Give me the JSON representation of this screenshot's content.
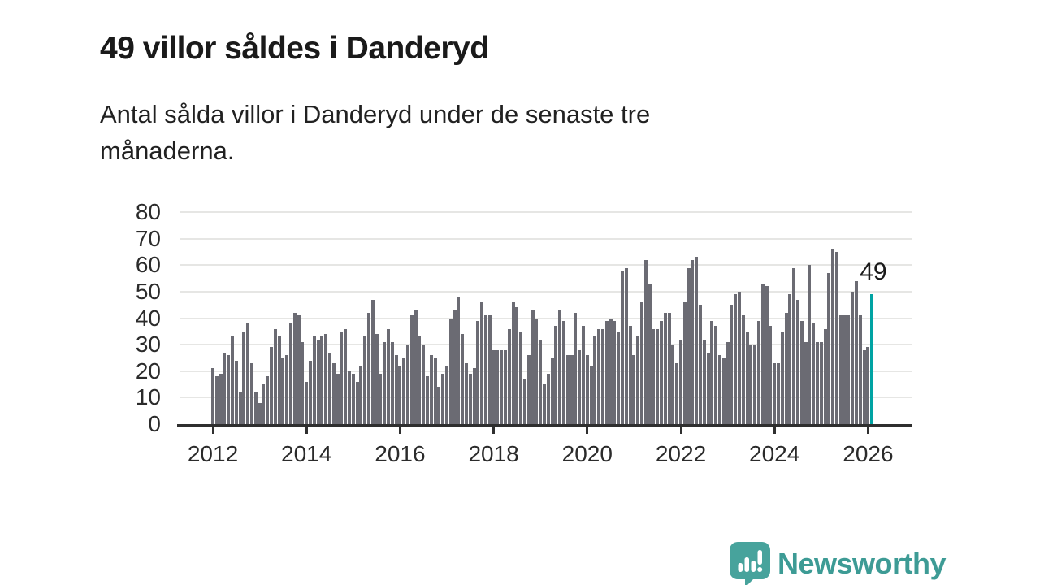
{
  "header": {
    "title": "49 villor såldes i Danderyd",
    "lede_lines": [
      "Antal sålda villor i Danderyd under de senaste tre",
      "månaderna."
    ]
  },
  "chart_data": {
    "type": "bar",
    "title": "49 villor såldes i Danderyd",
    "subtitle": "Antal sålda villor i Danderyd under de senaste tre månaderna.",
    "xlabel": "",
    "ylabel": "",
    "ylim": [
      0,
      80
    ],
    "y_ticks": [
      0,
      10,
      20,
      30,
      40,
      50,
      60,
      70,
      80
    ],
    "x_tick_labels": [
      "2012",
      "2014",
      "2016",
      "2018",
      "2020",
      "2022",
      "2024",
      "2026"
    ],
    "bars_per_x_tick": 24,
    "grid": true,
    "legend": "none",
    "bar_color": "#6b6b73",
    "values": [
      21,
      18,
      19,
      27,
      26,
      33,
      24,
      12,
      35,
      38,
      23,
      12,
      8,
      15,
      18,
      29,
      36,
      33,
      25,
      26,
      38,
      42,
      41,
      31,
      16,
      24,
      33,
      32,
      33,
      34,
      27,
      23,
      19,
      35,
      36,
      20,
      19,
      16,
      22,
      33,
      42,
      47,
      34,
      19,
      31,
      36,
      31,
      26,
      22,
      25,
      30,
      41,
      43,
      33,
      30,
      18,
      26,
      25,
      14,
      19,
      22,
      40,
      43,
      48,
      34,
      23,
      19,
      21,
      39,
      46,
      41,
      41,
      28,
      28,
      28,
      28,
      36,
      46,
      44,
      35,
      17,
      26,
      43,
      40,
      32,
      15,
      19,
      25,
      37,
      43,
      39,
      26,
      26,
      42,
      28,
      37,
      26,
      22,
      33,
      36,
      36,
      39,
      40,
      39,
      35,
      58,
      59,
      37,
      26,
      33,
      46,
      62,
      53,
      36,
      36,
      39,
      42,
      42,
      30,
      23,
      32,
      46,
      59,
      62,
      63,
      45,
      32,
      27,
      39,
      37,
      26,
      25,
      31,
      45,
      49,
      50,
      41,
      35,
      30,
      30,
      39,
      53,
      52,
      37,
      23,
      23,
      35,
      42,
      49,
      59,
      47,
      39,
      31,
      60,
      38,
      31,
      31,
      36,
      57,
      66,
      65,
      41,
      41,
      41,
      50,
      54,
      41,
      28,
      29,
      49
    ],
    "highlight": {
      "index": 169,
      "value": 49,
      "color": "#00a3a3",
      "annotation": "49"
    }
  },
  "footer": {
    "brand": "Newsworthy",
    "brand_color": "#3d9b95",
    "logo_color": "#47a39c"
  }
}
